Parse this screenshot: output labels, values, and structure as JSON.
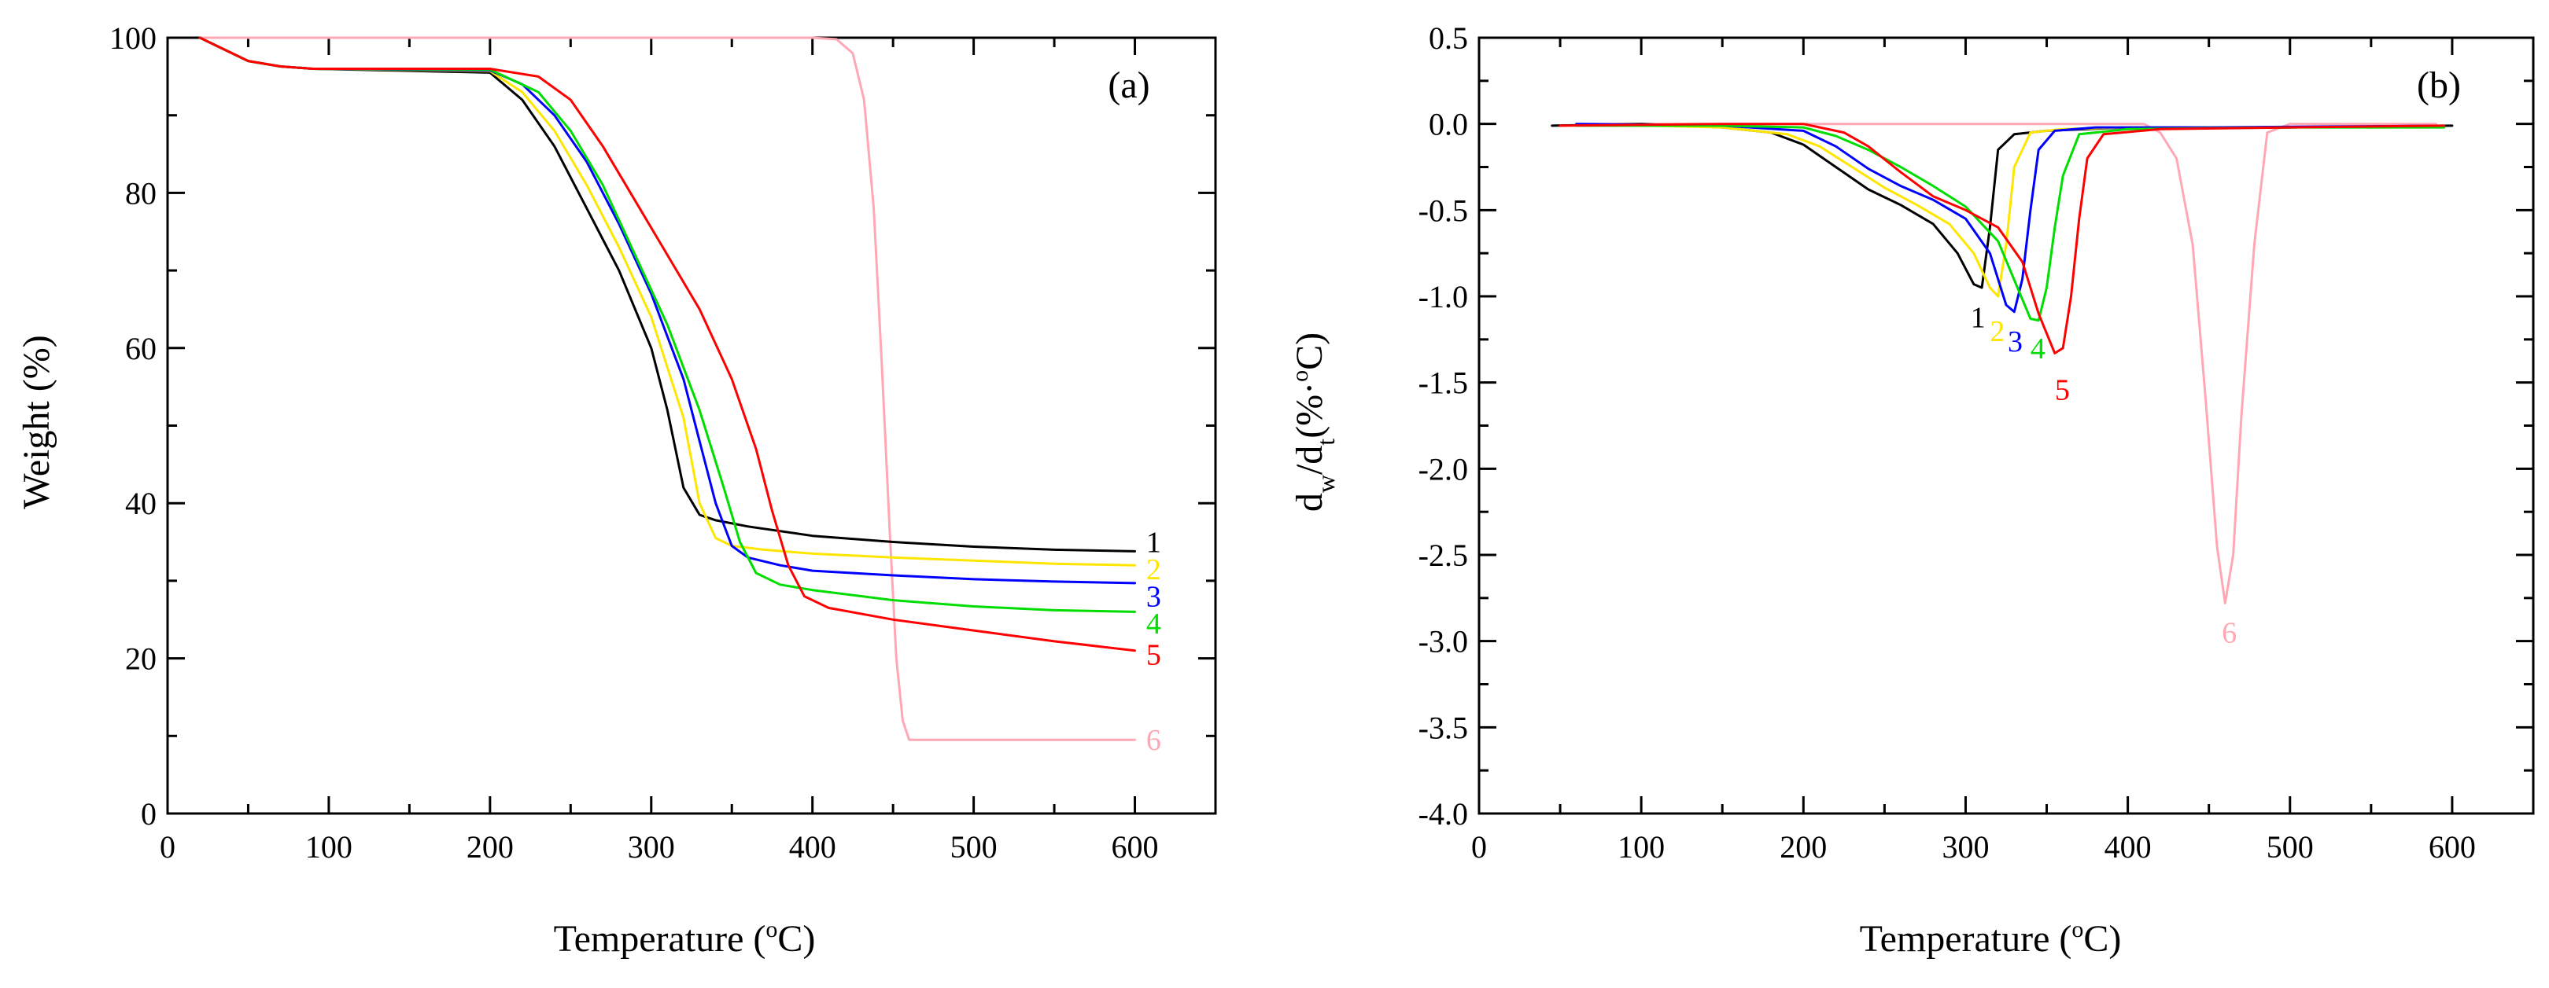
{
  "chart_data": [
    {
      "type": "line",
      "panel_label": "(a)",
      "xlabel": "Temperature (",
      "xlabel_sup": "o",
      "xlabel_tail": "C)",
      "ylabel": "Weight (%)",
      "xlim": [
        0,
        650
      ],
      "ylim": [
        0,
        100
      ],
      "x_ticks": [
        0,
        100,
        200,
        300,
        400,
        500,
        600
      ],
      "y_ticks": [
        0,
        20,
        40,
        60,
        80,
        100
      ],
      "x_tick_labels": [
        "0",
        "100",
        "200",
        "300",
        "400",
        "500",
        "600"
      ],
      "y_tick_labels": [
        "0",
        "20",
        "40",
        "60",
        "80",
        "100"
      ],
      "series": [
        {
          "name": "1",
          "color": "#000000",
          "label_at": [
            607,
            35
          ],
          "x": [
            20,
            30,
            50,
            70,
            90,
            200,
            220,
            240,
            260,
            280,
            300,
            310,
            320,
            330,
            340,
            360,
            400,
            450,
            500,
            550,
            600
          ],
          "y": [
            100,
            99,
            97,
            96.3,
            96,
            95.5,
            92,
            86,
            78,
            70,
            60,
            52,
            42,
            38.5,
            37.8,
            37,
            35.8,
            35,
            34.4,
            34,
            33.8
          ]
        },
        {
          "name": "2",
          "color": "#FFE600",
          "label_at": [
            607,
            31.5
          ],
          "x": [
            20,
            30,
            50,
            70,
            90,
            200,
            220,
            240,
            260,
            280,
            300,
            320,
            330,
            340,
            350,
            370,
            400,
            450,
            500,
            550,
            600
          ],
          "y": [
            100,
            99,
            97,
            96.3,
            96,
            95.7,
            93,
            88,
            81,
            73,
            64,
            51,
            40,
            35.5,
            34.5,
            34,
            33.5,
            33,
            32.6,
            32.2,
            32
          ]
        },
        {
          "name": "3",
          "color": "#0000FF",
          "label_at": [
            607,
            28
          ],
          "x": [
            20,
            30,
            50,
            70,
            90,
            200,
            220,
            240,
            260,
            280,
            300,
            320,
            330,
            340,
            350,
            360,
            380,
            400,
            450,
            500,
            550,
            600
          ],
          "y": [
            100,
            99,
            97,
            96.3,
            96,
            95.8,
            94,
            90,
            84,
            76,
            67,
            56,
            48,
            40,
            34.5,
            33,
            32,
            31.3,
            30.7,
            30.2,
            29.9,
            29.7
          ]
        },
        {
          "name": "4",
          "color": "#00DD00",
          "label_at": [
            607,
            24.5
          ],
          "x": [
            20,
            30,
            50,
            70,
            90,
            200,
            230,
            250,
            270,
            290,
            310,
            330,
            345,
            355,
            365,
            380,
            400,
            450,
            500,
            550,
            600
          ],
          "y": [
            100,
            99,
            97,
            96.3,
            96,
            95.9,
            93,
            88,
            81,
            72,
            63,
            52,
            42,
            35,
            31,
            29.5,
            28.8,
            27.5,
            26.7,
            26.2,
            26
          ]
        },
        {
          "name": "5",
          "color": "#FF0000",
          "label_at": [
            607,
            20.5
          ],
          "x": [
            20,
            30,
            50,
            70,
            90,
            200,
            230,
            250,
            270,
            290,
            310,
            330,
            350,
            365,
            375,
            385,
            395,
            410,
            450,
            500,
            550,
            600
          ],
          "y": [
            100,
            99,
            97,
            96.3,
            96,
            96,
            95,
            92,
            86,
            79,
            72,
            65,
            56,
            47,
            39,
            32,
            28,
            26.5,
            25,
            23.6,
            22.2,
            21
          ]
        },
        {
          "name": "6",
          "color": "#FFA8B4",
          "label_at": [
            607,
            9.5
          ],
          "x": [
            20,
            400,
            415,
            425,
            432,
            438,
            443,
            448,
            452,
            456,
            460,
            600
          ],
          "y": [
            100,
            100,
            99.8,
            98,
            92,
            78,
            58,
            36,
            20,
            12,
            9.5,
            9.5
          ]
        }
      ]
    },
    {
      "type": "line",
      "panel_label": "(b)",
      "xlabel": "Temperature (",
      "xlabel_sup": "o",
      "xlabel_tail": "C)",
      "ylabel_d1": "d",
      "ylabel_sub1": "w",
      "ylabel_mid": "/d",
      "ylabel_sub2": "t",
      "ylabel_tail": "(%·",
      "ylabel_sup": "o",
      "ylabel_end": "C)",
      "xlim": [
        0,
        650
      ],
      "ylim": [
        -4.0,
        0.5
      ],
      "x_ticks": [
        0,
        100,
        200,
        300,
        400,
        500,
        600
      ],
      "y_ticks": [
        -4.0,
        -3.5,
        -3.0,
        -2.5,
        -2.0,
        -1.5,
        -1.0,
        -0.5,
        0.0,
        0.5
      ],
      "x_tick_labels": [
        "0",
        "100",
        "200",
        "300",
        "400",
        "500",
        "600"
      ],
      "y_tick_labels": [
        "-4.0",
        "-3.5",
        "-3.0",
        "-2.5",
        "-2.0",
        "-1.5",
        "-1.0",
        "-0.5",
        "0.0",
        "0.5"
      ],
      "series": [
        {
          "name": "1",
          "color": "#000000",
          "label_at": [
            303,
            -1.12
          ],
          "x": [
            45,
            100,
            150,
            180,
            200,
            220,
            240,
            260,
            280,
            295,
            305,
            310,
            315,
            320,
            330,
            350,
            400,
            450,
            500,
            600
          ],
          "y": [
            -0.01,
            0.0,
            -0.02,
            -0.05,
            -0.12,
            -0.25,
            -0.38,
            -0.47,
            -0.58,
            -0.75,
            -0.93,
            -0.95,
            -0.6,
            -0.15,
            -0.06,
            -0.04,
            -0.02,
            -0.02,
            -0.02,
            -0.01
          ]
        },
        {
          "name": "2",
          "color": "#FFE600",
          "label_at": [
            315,
            -1.2
          ],
          "x": [
            60,
            150,
            190,
            210,
            230,
            250,
            270,
            290,
            305,
            315,
            320,
            325,
            330,
            340,
            360,
            400,
            500,
            595
          ],
          "y": [
            0.0,
            -0.02,
            -0.06,
            -0.13,
            -0.25,
            -0.37,
            -0.47,
            -0.58,
            -0.75,
            -0.95,
            -1.0,
            -0.7,
            -0.25,
            -0.05,
            -0.03,
            -0.02,
            -0.02,
            -0.01
          ]
        },
        {
          "name": "3",
          "color": "#0000FF",
          "label_at": [
            326,
            -1.26
          ],
          "x": [
            60,
            150,
            200,
            220,
            240,
            260,
            280,
            300,
            315,
            325,
            330,
            335,
            340,
            345,
            355,
            380,
            450,
            595
          ],
          "y": [
            0.0,
            -0.01,
            -0.04,
            -0.13,
            -0.26,
            -0.36,
            -0.44,
            -0.55,
            -0.75,
            -1.05,
            -1.09,
            -0.9,
            -0.5,
            -0.15,
            -0.04,
            -0.02,
            -0.02,
            -0.01
          ]
        },
        {
          "name": "4",
          "color": "#00DD00",
          "label_at": [
            340,
            -1.3
          ],
          "x": [
            60,
            150,
            200,
            220,
            240,
            260,
            280,
            300,
            320,
            332,
            340,
            345,
            350,
            355,
            360,
            370,
            400,
            500,
            595
          ],
          "y": [
            -0.01,
            -0.01,
            -0.02,
            -0.07,
            -0.15,
            -0.25,
            -0.36,
            -0.48,
            -0.68,
            -0.95,
            -1.13,
            -1.14,
            -0.95,
            -0.6,
            -0.3,
            -0.06,
            -0.03,
            -0.02,
            -0.02
          ]
        },
        {
          "name": "5",
          "color": "#FF0000",
          "label_at": [
            355,
            -1.54
          ],
          "x": [
            50,
            150,
            200,
            225,
            240,
            260,
            280,
            300,
            320,
            335,
            345,
            355,
            360,
            365,
            370,
            375,
            385,
            420,
            500,
            595
          ],
          "y": [
            -0.01,
            0.0,
            0.0,
            -0.05,
            -0.13,
            -0.28,
            -0.42,
            -0.5,
            -0.6,
            -0.8,
            -1.1,
            -1.33,
            -1.3,
            -1.0,
            -0.55,
            -0.2,
            -0.06,
            -0.03,
            -0.02,
            -0.01
          ]
        },
        {
          "name": "6",
          "color": "#FFA8B4",
          "label_at": [
            458,
            -2.95
          ],
          "x": [
            60,
            410,
            420,
            430,
            440,
            448,
            455,
            460,
            465,
            470,
            478,
            486,
            500,
            590
          ],
          "y": [
            0.0,
            0.0,
            -0.05,
            -0.2,
            -0.7,
            -1.6,
            -2.45,
            -2.78,
            -2.5,
            -1.7,
            -0.7,
            -0.05,
            0.0,
            0.0
          ]
        }
      ]
    }
  ]
}
